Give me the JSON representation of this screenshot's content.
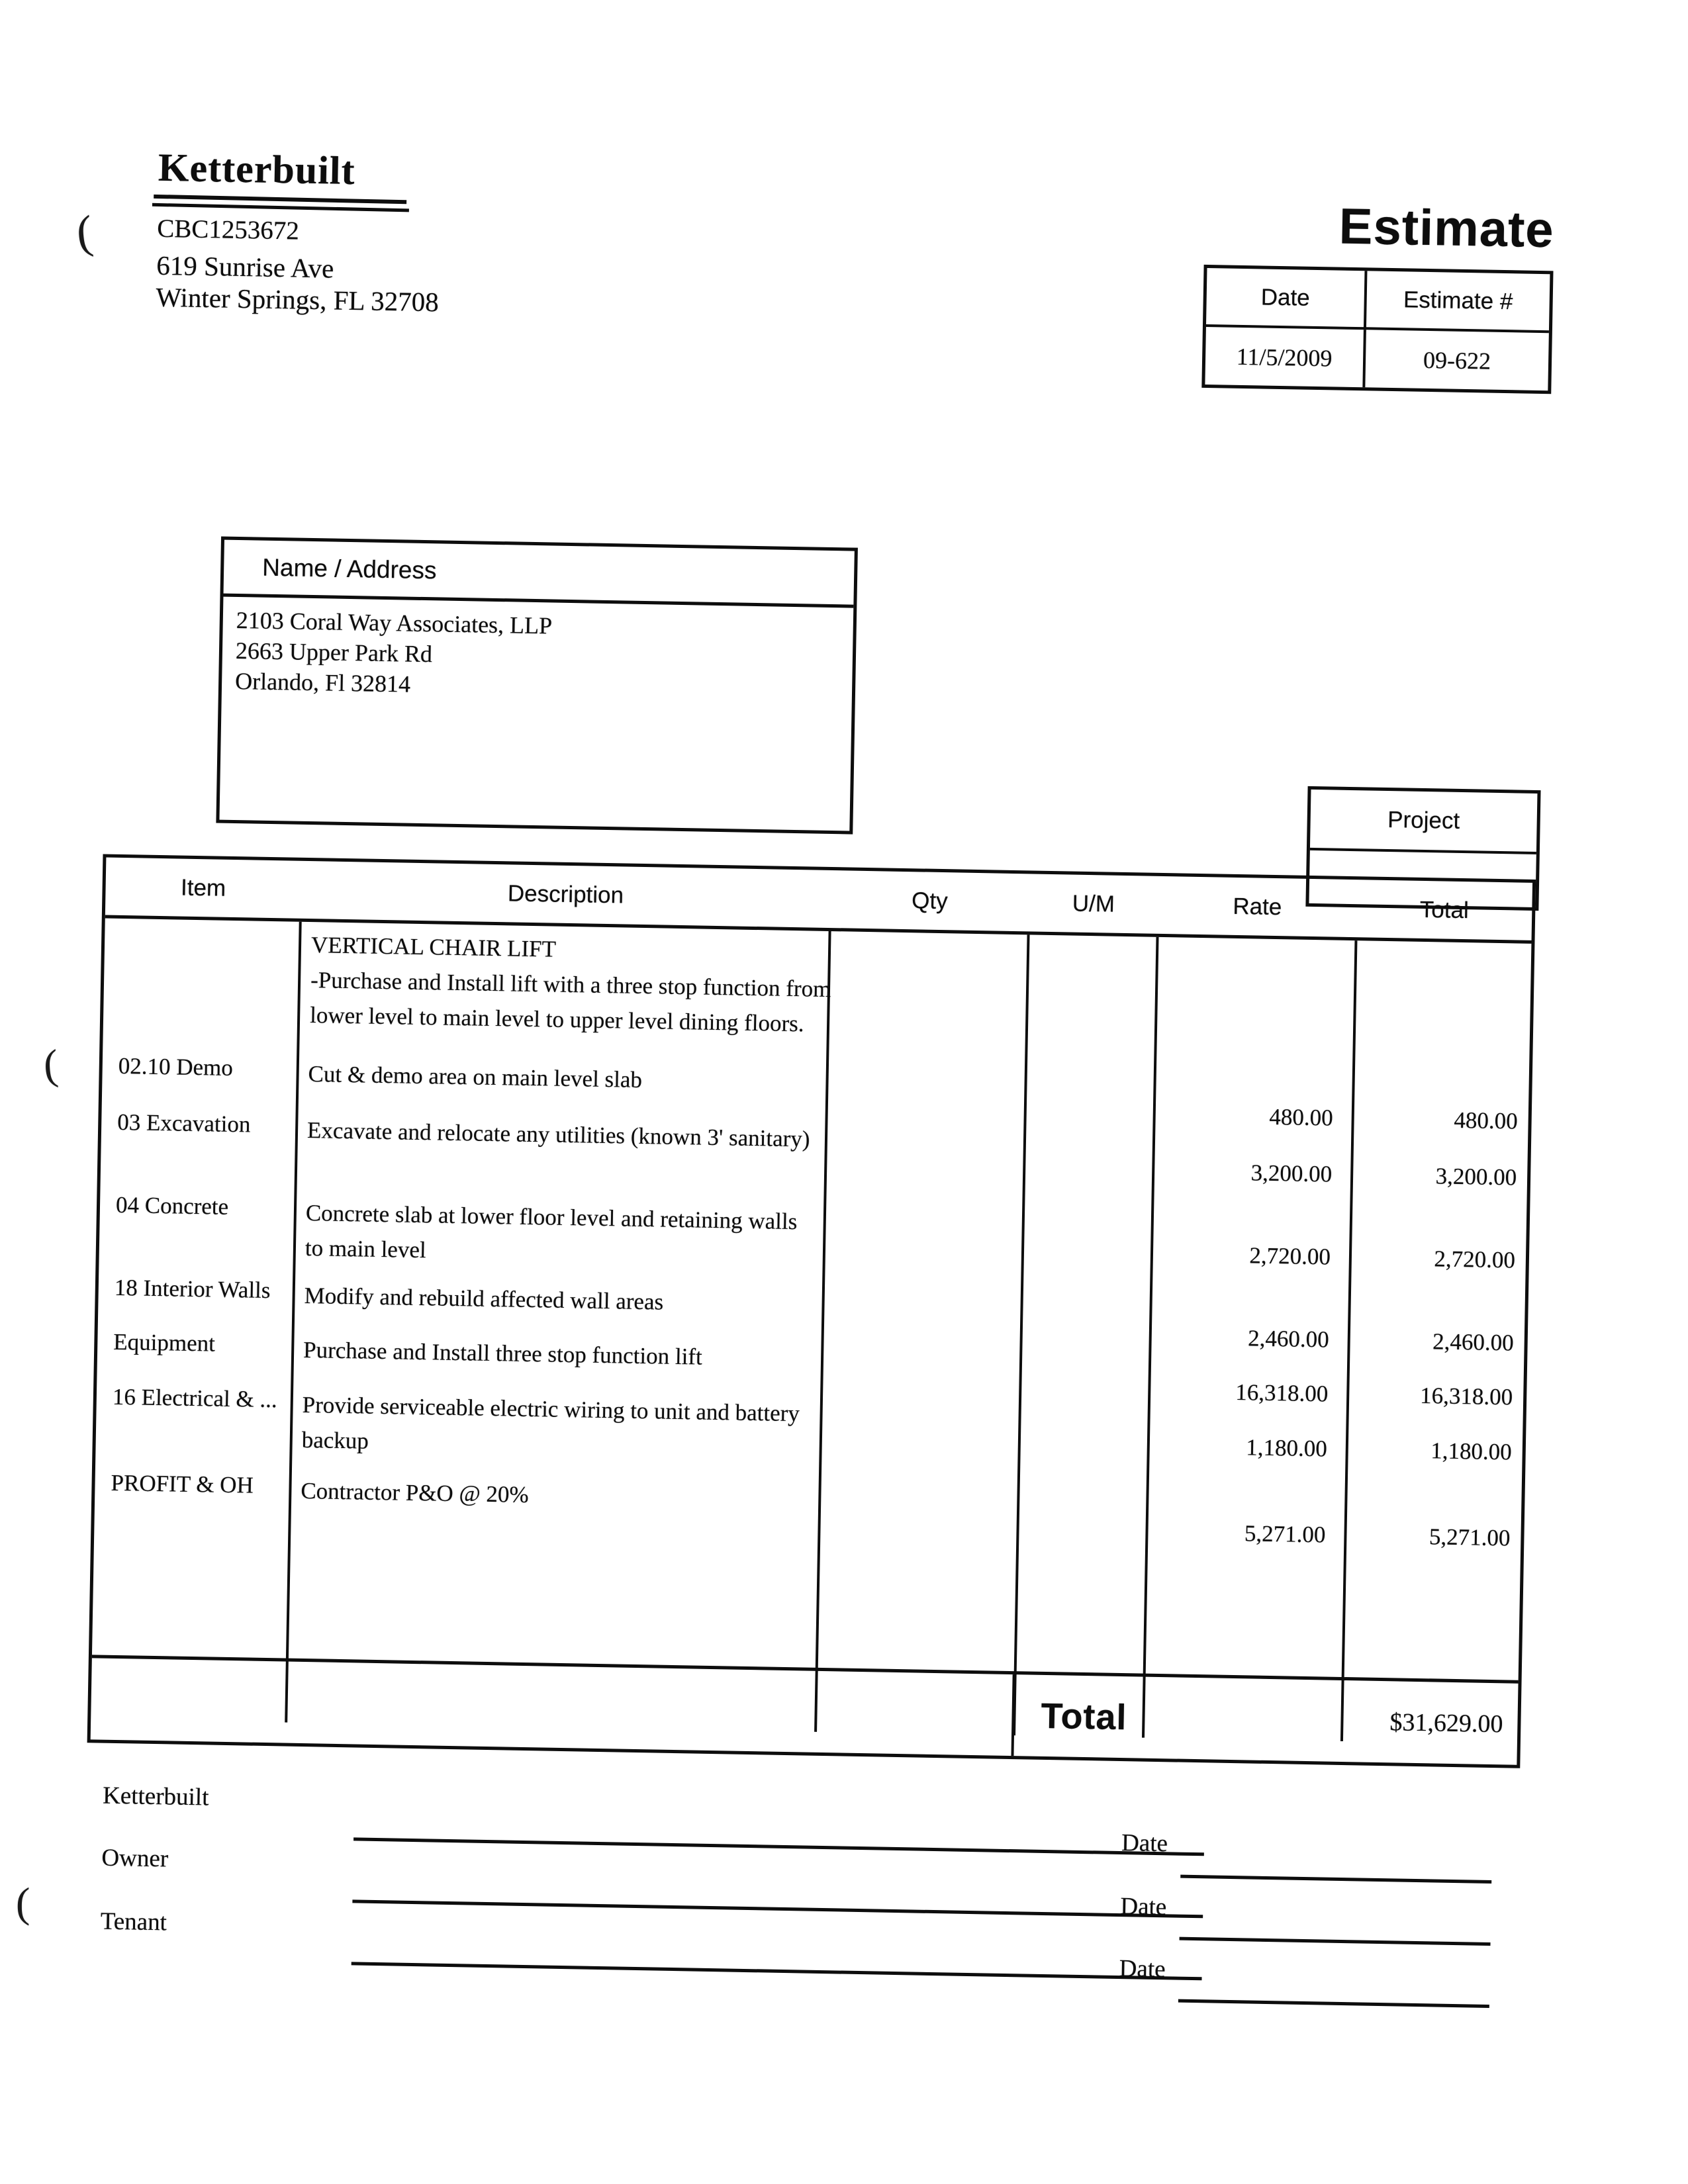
{
  "artifacts": {
    "paren": "("
  },
  "company": {
    "logo": "Ketterbuilt",
    "license": "CBC1253672",
    "address_line1": "619 Sunrise Ave",
    "address_line2": "Winter Springs, FL 32708"
  },
  "doc": {
    "title": "Estimate",
    "date_label": "Date",
    "estimate_no_label": "Estimate #",
    "date": "11/5/2009",
    "estimate_no": "09-622"
  },
  "customer": {
    "header": "Name / Address",
    "lines": [
      "2103 Coral Way Associates, LLP",
      "2663 Upper Park Rd",
      "Orlando, Fl 32814"
    ]
  },
  "project": {
    "header": "Project",
    "value": ""
  },
  "table": {
    "headers": {
      "item": "Item",
      "description": "Description",
      "qty": "Qty",
      "um": "U/M",
      "rate": "Rate",
      "total": "Total"
    },
    "intro": {
      "title": "VERTICAL CHAIR LIFT",
      "body": "-Purchase and Install lift with a three stop function from lower level to main level to upper level dining floors."
    },
    "rows": [
      {
        "item": "02.10 Demo",
        "description": "Cut & demo area on main level slab",
        "qty": "",
        "um": "",
        "rate": "480.00",
        "total": "480.00"
      },
      {
        "item": "03 Excavation",
        "description": "Excavate and relocate any utilities (known 3' sanitary)",
        "qty": "",
        "um": "",
        "rate": "3,200.00",
        "total": "3,200.00"
      },
      {
        "item": "04 Concrete",
        "description": "Concrete slab at lower floor level and retaining walls to main level",
        "qty": "",
        "um": "",
        "rate": "2,720.00",
        "total": "2,720.00"
      },
      {
        "item": "18 Interior Walls",
        "description": "Modify and rebuild affected wall areas",
        "qty": "",
        "um": "",
        "rate": "2,460.00",
        "total": "2,460.00"
      },
      {
        "item": "Equipment",
        "description": "Purchase and Install three stop function lift",
        "qty": "",
        "um": "",
        "rate": "16,318.00",
        "total": "16,318.00"
      },
      {
        "item": "16 Electrical & ...",
        "description": "Provide serviceable electric wiring to unit and battery backup",
        "qty": "",
        "um": "",
        "rate": "1,180.00",
        "total": "1,180.00"
      },
      {
        "item": "PROFIT & OH",
        "description": "Contractor P&O @ 20%",
        "qty": "",
        "um": "",
        "rate": "5,271.00",
        "total": "5,271.00"
      }
    ],
    "total_label": "Total",
    "total_value": "$31,629.00"
  },
  "signatures": {
    "rows": [
      {
        "label": "Ketterbuilt",
        "date_label": "Date"
      },
      {
        "label": "Owner",
        "date_label": "Date"
      },
      {
        "label": "Tenant",
        "date_label": "Date"
      }
    ]
  }
}
